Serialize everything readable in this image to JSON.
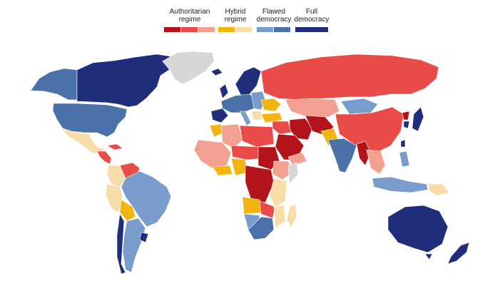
{
  "legend": {
    "groups": [
      {
        "key": "authoritarian",
        "lines": [
          "Authoritarian",
          "regime"
        ],
        "colors": [
          "#b3131a",
          "#e84b48",
          "#f2a090"
        ]
      },
      {
        "key": "hybrid",
        "lines": [
          "Hybrid",
          "regime"
        ],
        "colors": [
          "#f2b40f",
          "#f8dcaa"
        ]
      },
      {
        "key": "flawed",
        "lines": [
          "Flawed",
          "democracy"
        ],
        "colors": [
          "#7a9ccc",
          "#4a72a9"
        ]
      },
      {
        "key": "full",
        "lines": [
          "Full",
          "democracy"
        ],
        "colors": [
          "#1f2d7a"
        ]
      }
    ]
  },
  "colors": {
    "authoritarian_dark": "#b3131a",
    "authoritarian_mid": "#e84b48",
    "authoritarian_light": "#f2a090",
    "hybrid_dark": "#f2b40f",
    "hybrid_light": "#f8dcaa",
    "flawed_light": "#7a9ccc",
    "flawed_dark": "#4a72a9",
    "full": "#1f2d7a",
    "no_data": "#d6d6d6"
  }
}
